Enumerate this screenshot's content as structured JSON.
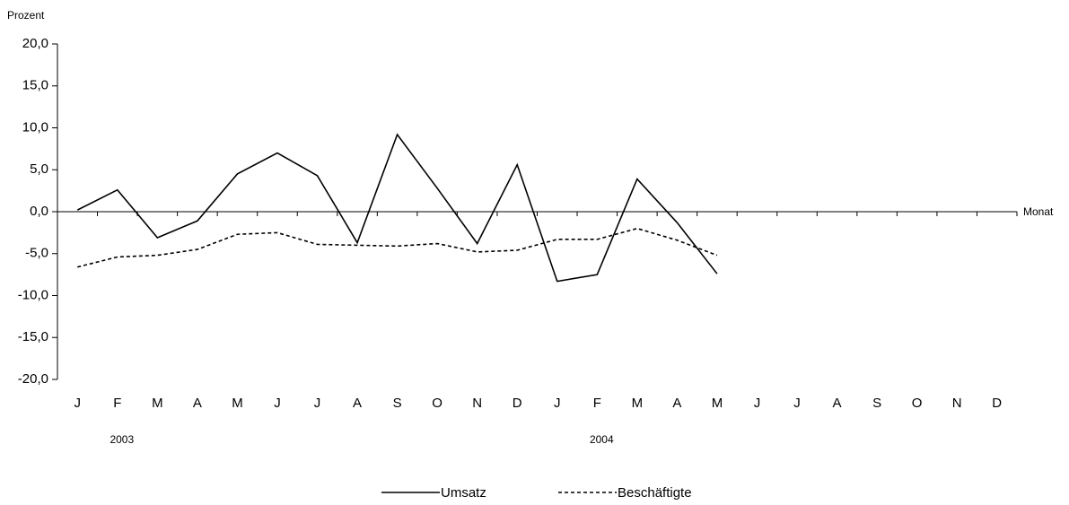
{
  "chart_data": {
    "type": "line",
    "y_label": "Prozent",
    "x_label": "Monat",
    "categories": [
      "J",
      "F",
      "M",
      "A",
      "M",
      "J",
      "J",
      "A",
      "S",
      "O",
      "N",
      "D",
      "J",
      "F",
      "M",
      "A",
      "M",
      "J",
      "J",
      "A",
      "S",
      "O",
      "N",
      "D"
    ],
    "year_labels": [
      "2003",
      "2004"
    ],
    "series": [
      {
        "name": "Umsatz",
        "color": "#000000",
        "dash": false,
        "values": [
          0.2,
          2.6,
          -3.1,
          -1.1,
          4.5,
          7.0,
          4.3,
          -3.7,
          9.2,
          2.8,
          -3.8,
          5.6,
          -8.3,
          -7.5,
          3.9,
          -1.3,
          -7.4,
          null,
          null,
          null,
          null,
          null,
          null,
          null
        ]
      },
      {
        "name": "Beschäftigte",
        "color": "#000000",
        "dash": true,
        "values": [
          -6.6,
          -5.4,
          -5.2,
          -4.5,
          -2.7,
          -2.5,
          -3.9,
          -4.0,
          -4.1,
          -3.8,
          -4.8,
          -4.6,
          -3.3,
          -3.3,
          -2.0,
          -3.4,
          -5.2,
          null,
          null,
          null,
          null,
          null,
          null,
          null
        ]
      }
    ],
    "ylim": [
      -20,
      20
    ],
    "yticks": [
      {
        "value": 20,
        "label": "20,0"
      },
      {
        "value": 15,
        "label": "15,0"
      },
      {
        "value": 10,
        "label": "10,0"
      },
      {
        "value": 5,
        "label": "5,0"
      },
      {
        "value": 0,
        "label": "0,0"
      },
      {
        "value": -5,
        "label": "-5,0"
      },
      {
        "value": -10,
        "label": "-10,0"
      },
      {
        "value": -15,
        "label": "-15,0"
      },
      {
        "value": -20,
        "label": "-20,0"
      }
    ],
    "grid": false
  }
}
